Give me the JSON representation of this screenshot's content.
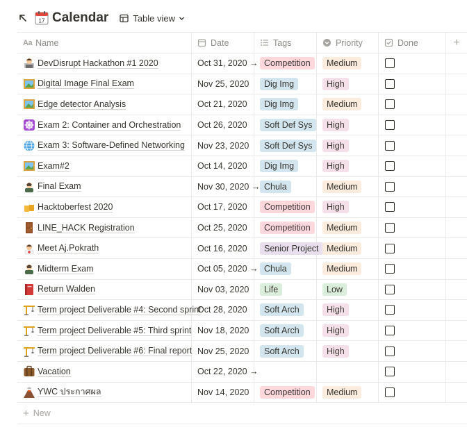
{
  "header": {
    "title": "Calendar",
    "view_label": "Table view",
    "link_icon": "arrow-up-left-icon",
    "page_icon": "calendar-icon"
  },
  "columns": {
    "name": "Name",
    "date": "Date",
    "tags": "Tags",
    "priority": "Priority",
    "done": "Done"
  },
  "rows": [
    {
      "name": "DevDisrupt Hackathon #1 2020",
      "icon": "technologist-emoji",
      "date": "Oct 31, 2020 →",
      "tag": "Competition",
      "tag_color": "red",
      "priority": "Medium",
      "prio_color": "orange",
      "done": false
    },
    {
      "name": "Digital Image Final Exam",
      "icon": "framed-picture-emoji",
      "date": "Nov 25, 2020",
      "tag": "Dig Img",
      "tag_color": "blue",
      "priority": "High",
      "prio_color": "pink",
      "done": false
    },
    {
      "name": "Edge detector Analysis",
      "icon": "framed-picture-emoji",
      "date": "Oct 21, 2020",
      "tag": "Dig Img",
      "tag_color": "blue",
      "priority": "Medium",
      "prio_color": "orange",
      "done": false
    },
    {
      "name": "Exam 2: Container and Orchestration",
      "icon": "helm-wheel-emoji",
      "date": "Oct 26, 2020",
      "tag": "Soft Def Sys",
      "tag_color": "blue",
      "priority": "High",
      "prio_color": "pink",
      "done": false
    },
    {
      "name": "Exam 3: Software-Defined Networking",
      "icon": "globe-emoji",
      "date": "Nov 23, 2020",
      "tag": "Soft Def Sys",
      "tag_color": "blue",
      "priority": "High",
      "prio_color": "pink",
      "done": false
    },
    {
      "name": "Exam#2",
      "icon": "framed-picture-emoji",
      "date": "Oct 14, 2020",
      "tag": "Dig Img",
      "tag_color": "blue",
      "priority": "High",
      "prio_color": "pink",
      "done": false
    },
    {
      "name": "Final Exam",
      "icon": "teacher-emoji",
      "date": "Nov 30, 2020 →",
      "tag": "Chula",
      "tag_color": "blue",
      "priority": "Medium",
      "prio_color": "orange",
      "done": false
    },
    {
      "name": "Hacktoberfest 2020",
      "icon": "beer-mugs-emoji",
      "date": "Oct 17, 2020",
      "tag": "Competition",
      "tag_color": "red",
      "priority": "High",
      "prio_color": "pink",
      "done": false
    },
    {
      "name": "LINE_HACK Registration",
      "icon": "door-emoji",
      "date": "Oct 25, 2020",
      "tag": "Competition",
      "tag_color": "red",
      "priority": "Medium",
      "prio_color": "orange",
      "done": false
    },
    {
      "name": "Meet Aj.Pokrath",
      "icon": "health-worker-emoji",
      "date": "Oct 16, 2020",
      "tag": "Senior Project",
      "tag_color": "purple",
      "priority": "Medium",
      "prio_color": "orange",
      "done": false
    },
    {
      "name": "Midterm Exam",
      "icon": "teacher-emoji",
      "date": "Oct 05, 2020 →",
      "tag": "Chula",
      "tag_color": "blue",
      "priority": "Medium",
      "prio_color": "orange",
      "done": false
    },
    {
      "name": "Return Walden",
      "icon": "closed-book-emoji",
      "date": "Nov 03, 2020",
      "tag": "Life",
      "tag_color": "green",
      "priority": "Low",
      "prio_color": "green",
      "done": false
    },
    {
      "name": "Term project Deliverable #4: Second sprint",
      "icon": "crane-emoji",
      "date": "Oct 28, 2020",
      "tag": "Soft Arch",
      "tag_color": "blue",
      "priority": "High",
      "prio_color": "pink",
      "done": false
    },
    {
      "name": "Term project Deliverable #5: Third sprint",
      "icon": "crane-emoji",
      "date": "Nov 18, 2020",
      "tag": "Soft Arch",
      "tag_color": "blue",
      "priority": "High",
      "prio_color": "pink",
      "done": false
    },
    {
      "name": "Term project Deliverable #6: Final report",
      "icon": "crane-emoji",
      "date": "Nov 25, 2020",
      "tag": "Soft Arch",
      "tag_color": "blue",
      "priority": "High",
      "prio_color": "pink",
      "done": false
    },
    {
      "name": "Vacation",
      "icon": "luggage-emoji",
      "date": "Oct 22, 2020 →",
      "tag": "",
      "tag_color": "",
      "priority": "",
      "prio_color": "",
      "done": false
    },
    {
      "name": "YWC ประกาศผล",
      "icon": "volcano-emoji",
      "date": "Nov 14, 2020",
      "tag": "Competition",
      "tag_color": "red",
      "priority": "Medium",
      "prio_color": "orange",
      "done": false
    }
  ],
  "footer": {
    "new_label": "New"
  },
  "colors": {
    "red": "#ffd8dc",
    "blue": "#d3e5ef",
    "purple": "#e8deee",
    "green": "#dbeddb",
    "orange": "#fbecdd",
    "pink": "#f5e0e9"
  }
}
